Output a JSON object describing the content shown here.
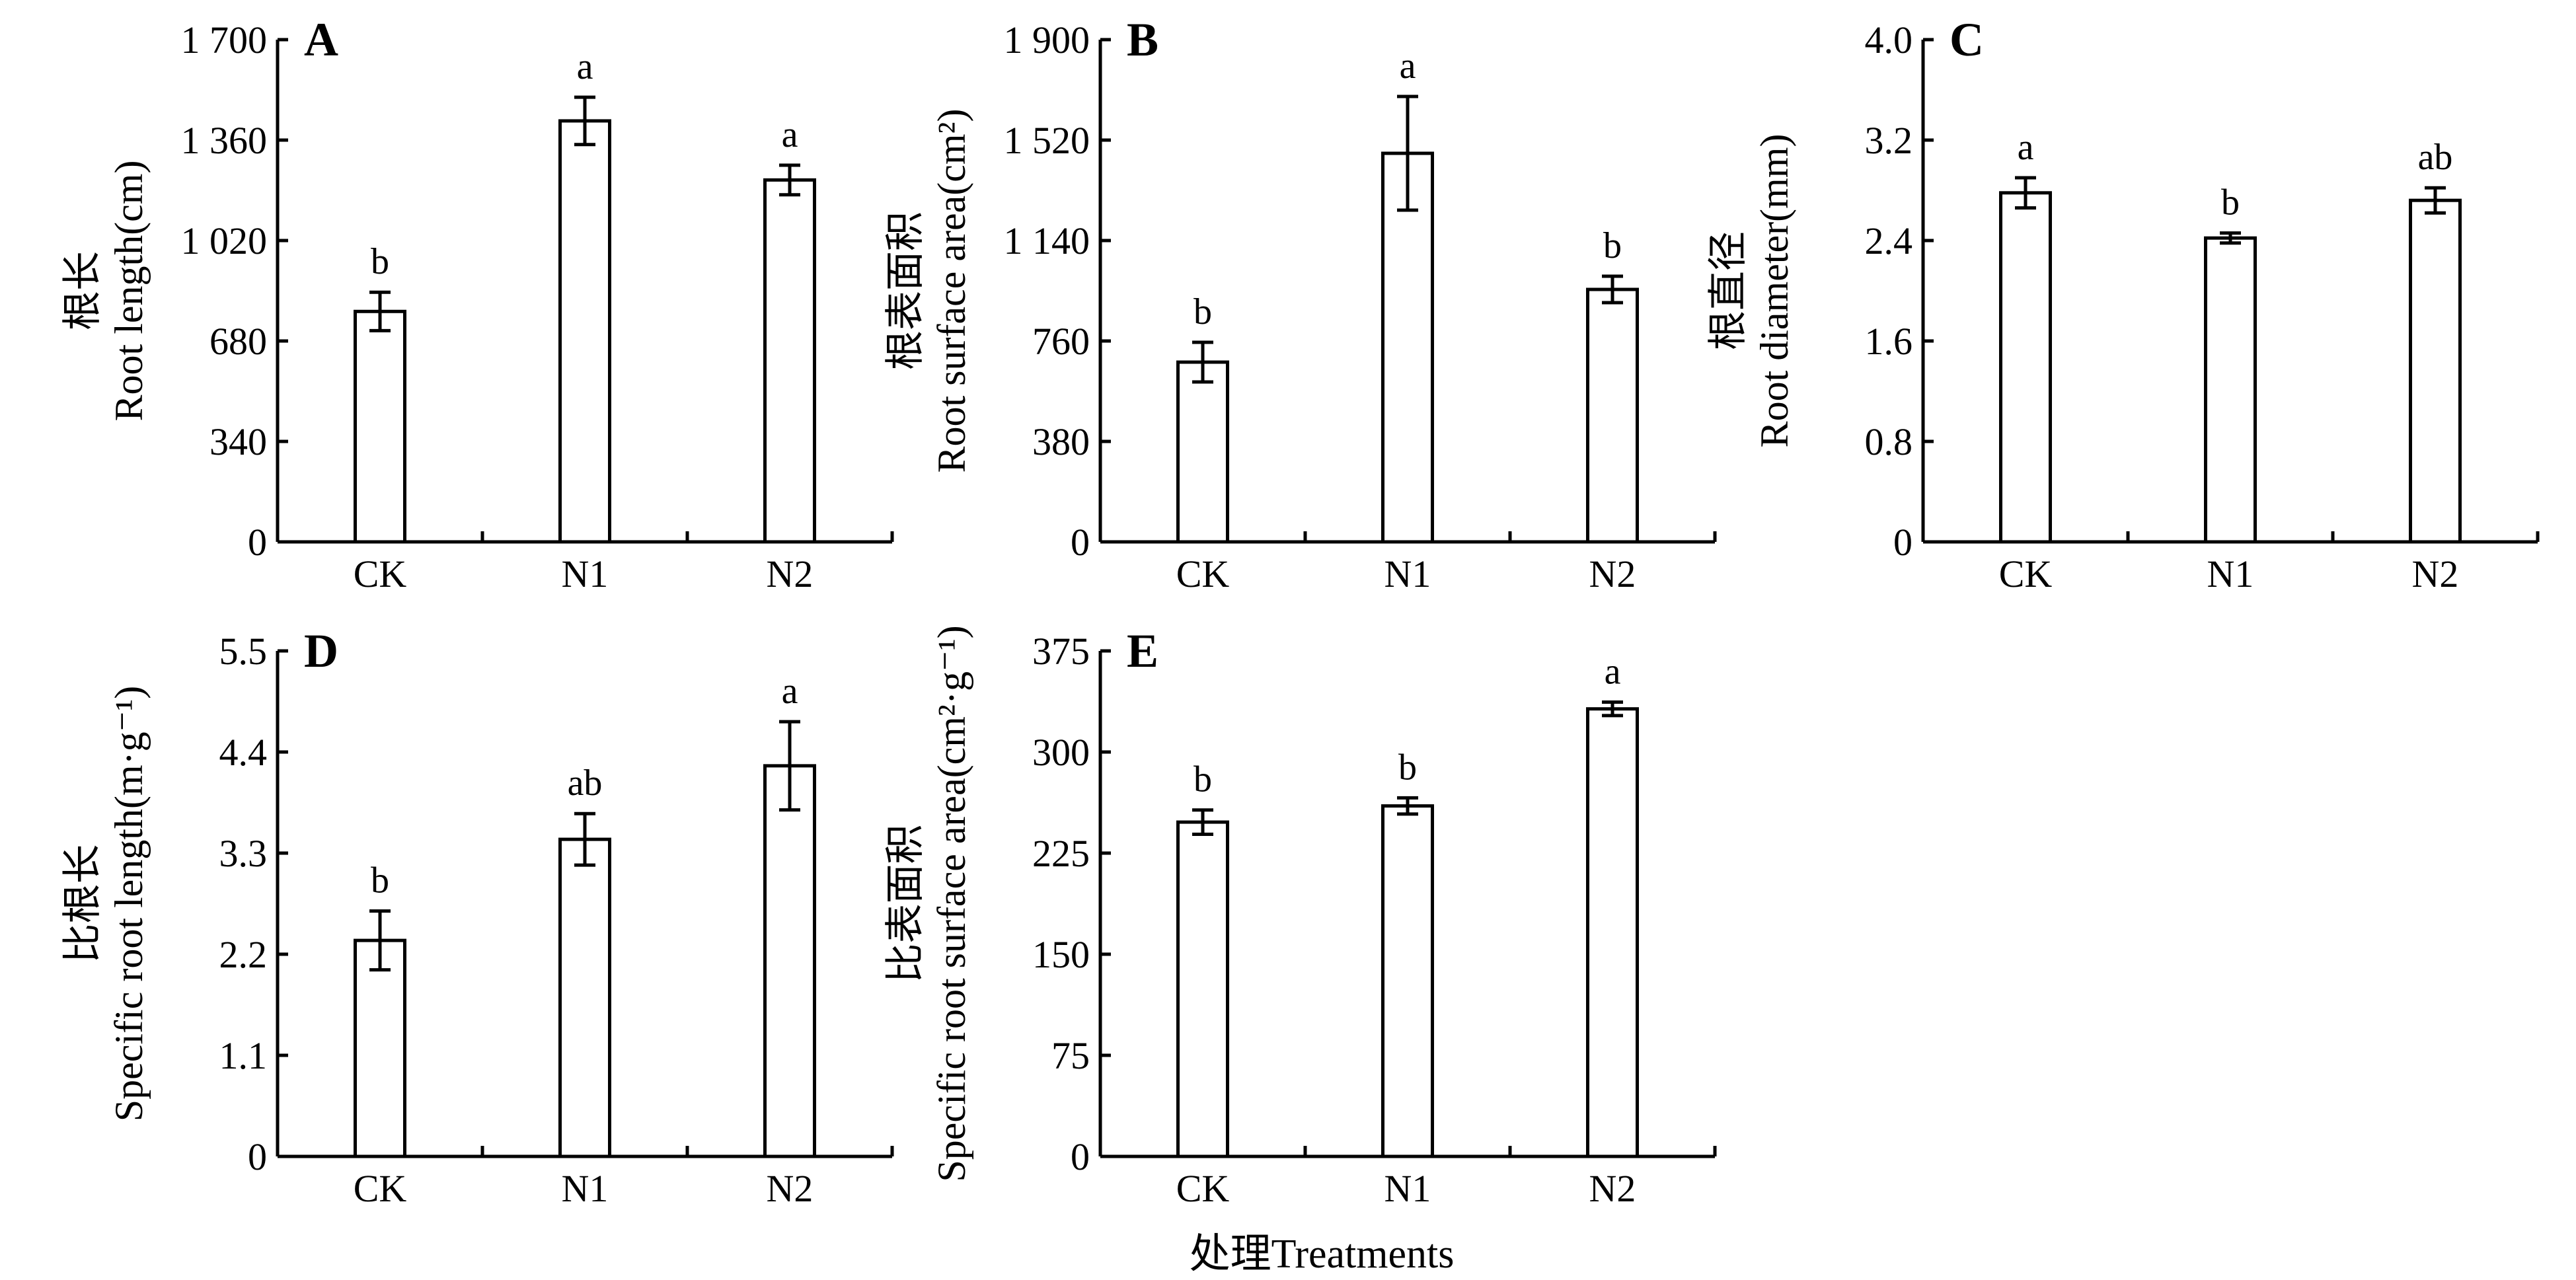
{
  "figure": {
    "xlabel": "处理Treatments"
  },
  "chart_data": [
    {
      "panel": "A",
      "type": "bar",
      "categories": [
        "CK",
        "N1",
        "N2"
      ],
      "values": [
        780,
        1425,
        1225
      ],
      "errors": [
        65,
        80,
        50
      ],
      "significance": [
        "b",
        "a",
        "a"
      ],
      "ylabel_cn": "根长",
      "ylabel_en": "Root length(cm)",
      "ylim": [
        0,
        1700
      ],
      "yticks": [
        "0",
        "340",
        "680",
        "1 020",
        "1 360",
        "1 700"
      ]
    },
    {
      "panel": "B",
      "type": "bar",
      "categories": [
        "CK",
        "N1",
        "N2"
      ],
      "values": [
        680,
        1470,
        955
      ],
      "errors": [
        75,
        215,
        50
      ],
      "significance": [
        "b",
        "a",
        "b"
      ],
      "ylabel_cn": "根表面积",
      "ylabel_en": "Root surface area(cm²)",
      "ylim": [
        0,
        1900
      ],
      "yticks": [
        "0",
        "380",
        "760",
        "1 140",
        "1 520",
        "1 900"
      ]
    },
    {
      "panel": "C",
      "type": "bar",
      "categories": [
        "CK",
        "N1",
        "N2"
      ],
      "values": [
        2.78,
        2.42,
        2.72
      ],
      "errors": [
        0.12,
        0.04,
        0.1
      ],
      "significance": [
        "a",
        "b",
        "ab"
      ],
      "ylabel_cn": "根直径",
      "ylabel_en": "Root diameter(mm)",
      "ylim": [
        0,
        4.0
      ],
      "yticks": [
        "0",
        "0.8",
        "1.6",
        "2.4",
        "3.2",
        "4.0"
      ]
    },
    {
      "panel": "D",
      "type": "bar",
      "categories": [
        "CK",
        "N1",
        "N2"
      ],
      "values": [
        2.35,
        3.45,
        4.25
      ],
      "errors": [
        0.32,
        0.28,
        0.48
      ],
      "significance": [
        "b",
        "ab",
        "a"
      ],
      "ylabel_cn": "比根长",
      "ylabel_en": "Specific root length(m·g⁻¹)",
      "ylim": [
        0,
        5.5
      ],
      "yticks": [
        "0",
        "1.1",
        "2.2",
        "3.3",
        "4.4",
        "5.5"
      ]
    },
    {
      "panel": "E",
      "type": "bar",
      "categories": [
        "CK",
        "N1",
        "N2"
      ],
      "values": [
        248,
        260,
        332
      ],
      "errors": [
        9,
        6,
        5
      ],
      "significance": [
        "b",
        "b",
        "a"
      ],
      "ylabel_cn": "比表面积",
      "ylabel_en": "Specific root surface area(cm²·g⁻¹)",
      "ylim": [
        0,
        375
      ],
      "yticks": [
        "0",
        "75",
        "150",
        "225",
        "300",
        "375"
      ]
    }
  ]
}
